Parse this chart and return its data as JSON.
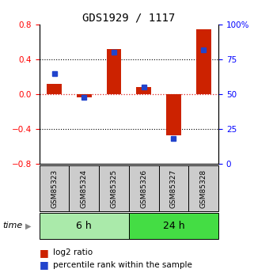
{
  "title": "GDS1929 / 1117",
  "samples": [
    "GSM85323",
    "GSM85324",
    "GSM85325",
    "GSM85326",
    "GSM85327",
    "GSM85328"
  ],
  "log2_ratio": [
    0.12,
    -0.04,
    0.52,
    0.08,
    -0.47,
    0.75
  ],
  "percentile_rank": [
    65,
    48,
    80,
    55,
    18,
    82
  ],
  "groups": [
    {
      "label": "6 h",
      "indices": [
        0,
        1,
        2
      ],
      "color": "#aaeaaa"
    },
    {
      "label": "24 h",
      "indices": [
        3,
        4,
        5
      ],
      "color": "#44dd44"
    }
  ],
  "ylim_left": [
    -0.8,
    0.8
  ],
  "ylim_right": [
    0,
    100
  ],
  "yticks_left": [
    -0.8,
    -0.4,
    0.0,
    0.4,
    0.8
  ],
  "yticks_right": [
    0,
    25,
    50,
    75,
    100
  ],
  "bar_color_red": "#cc2200",
  "dot_color_blue": "#2244cc",
  "hline_color": "#dd2222",
  "bg_color": "#ffffff",
  "sample_box_color": "#cccccc",
  "time_label": "time"
}
